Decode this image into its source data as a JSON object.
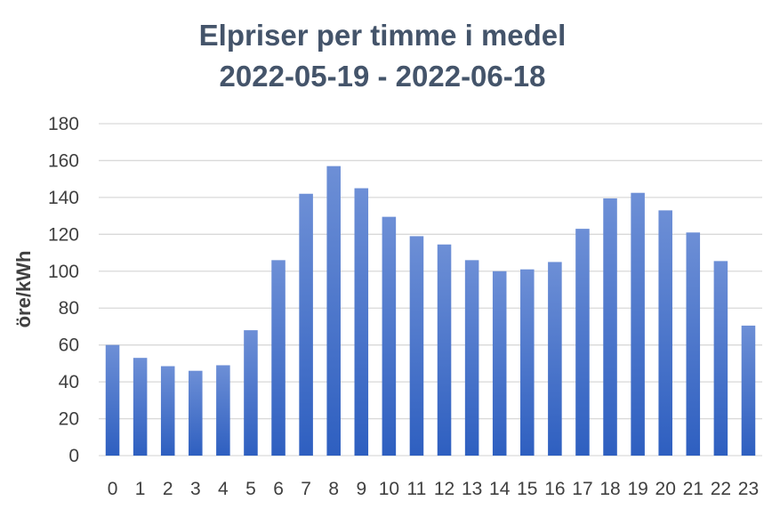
{
  "chart_data": {
    "type": "bar",
    "title_lines": [
      "Elpriser per timme i medel",
      "2022-05-19 - 2022-06-18"
    ],
    "xlabel": "",
    "ylabel": "öre/kWh",
    "categories": [
      "0",
      "1",
      "2",
      "3",
      "4",
      "5",
      "6",
      "7",
      "8",
      "9",
      "10",
      "11",
      "12",
      "13",
      "14",
      "15",
      "16",
      "17",
      "18",
      "19",
      "20",
      "21",
      "22",
      "23"
    ],
    "values": [
      60,
      53,
      48.5,
      46,
      49,
      68,
      106,
      142,
      157,
      145,
      129.5,
      119,
      114.5,
      106,
      100,
      101,
      105,
      123,
      139.5,
      142.5,
      133,
      121,
      105.5,
      70.5
    ],
    "ylim": [
      0,
      180
    ],
    "yticks": [
      0,
      20,
      40,
      60,
      80,
      100,
      120,
      140,
      160,
      180
    ],
    "grid": true,
    "legend": "none",
    "colors": {
      "bar_top": "#6d8fd6",
      "bar_bottom": "#2e5fc0",
      "grid": "#d9d9d9",
      "text": "#404040",
      "title": "#44546a"
    }
  }
}
